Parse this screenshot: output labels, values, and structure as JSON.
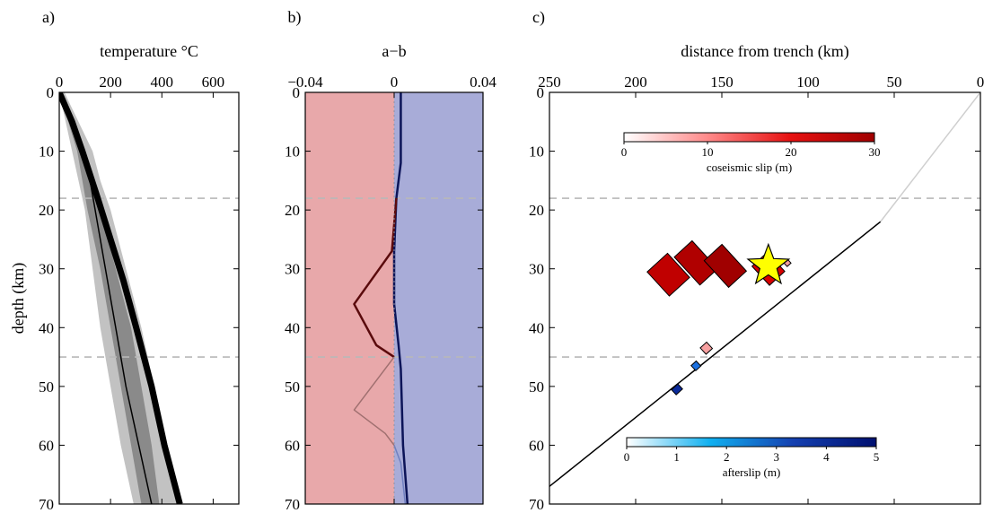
{
  "chart_data": [
    {
      "type": "line",
      "panel_label": "a)",
      "title": "temperature °C",
      "ylabel": "depth (km)",
      "xlim": [
        0,
        700
      ],
      "ylim": [
        0,
        70
      ],
      "xticks": [
        0,
        200,
        400,
        600
      ],
      "yticks": [
        0,
        10,
        20,
        30,
        40,
        50,
        60,
        70
      ],
      "reference_depths": [
        18,
        45
      ],
      "bands": [
        {
          "name": "outer",
          "color": "#c2c2c2",
          "left": [
            [
              0,
              0
            ],
            [
              50,
              10
            ],
            [
              100,
              20
            ],
            [
              130,
              30
            ],
            [
              160,
              40
            ],
            [
              200,
              50
            ],
            [
              240,
              60
            ],
            [
              290,
              70
            ]
          ],
          "right": [
            [
              20,
              0
            ],
            [
              130,
              10
            ],
            [
              160,
              15
            ],
            [
              200,
              20
            ],
            [
              260,
              30
            ],
            [
              320,
              40
            ],
            [
              370,
              50
            ],
            [
              410,
              60
            ],
            [
              460,
              70
            ]
          ]
        },
        {
          "name": "inner",
          "color": "#8a8a8a",
          "left": [
            [
              0,
              0
            ],
            [
              70,
              10
            ],
            [
              110,
              20
            ],
            [
              160,
              30
            ],
            [
              200,
              40
            ],
            [
              240,
              50
            ],
            [
              280,
              60
            ],
            [
              320,
              70
            ]
          ],
          "right": [
            [
              10,
              0
            ],
            [
              90,
              10
            ],
            [
              120,
              15
            ],
            [
              160,
              20
            ],
            [
              220,
              30
            ],
            [
              280,
              40
            ],
            [
              320,
              50
            ],
            [
              360,
              60
            ],
            [
              390,
              70
            ]
          ]
        }
      ],
      "series": [
        {
          "color": "#000000",
          "width": 1.5,
          "points": [
            [
              0,
              0
            ],
            [
              80,
              10
            ],
            [
              120,
              15
            ],
            [
              140,
              20
            ],
            [
              180,
              30
            ],
            [
              220,
              40
            ],
            [
              260,
              50
            ],
            [
              310,
              60
            ],
            [
              360,
              70
            ]
          ]
        },
        {
          "color": "#000000",
          "width": 7,
          "points": [
            [
              0,
              0
            ],
            [
              50,
              5
            ],
            [
              90,
              10
            ],
            [
              150,
              18
            ],
            [
              200,
              25
            ],
            [
              250,
              32
            ],
            [
              300,
              40
            ],
            [
              360,
              50
            ],
            [
              410,
              60
            ],
            [
              470,
              70
            ]
          ]
        }
      ]
    },
    {
      "type": "line",
      "panel_label": "b)",
      "title": "a−b",
      "xlim": [
        -0.04,
        0.04
      ],
      "ylim": [
        0,
        70
      ],
      "xticks": [
        -0.04,
        0,
        0.04
      ],
      "xticklabels": [
        "−0.04",
        "0",
        "0.04"
      ],
      "yticks": [
        0,
        10,
        20,
        30,
        40,
        50,
        60,
        70
      ],
      "reference_depths": [
        18,
        45
      ],
      "negative_fill": "#e8a8aa",
      "positive_fill": "#a8acd8",
      "series": [
        {
          "color": "#0c1458",
          "width": 2.5,
          "points": [
            [
              0.003,
              0
            ],
            [
              0.003,
              12
            ],
            [
              0.001,
              18
            ],
            [
              0,
              27
            ],
            [
              0,
              36
            ],
            [
              0.002,
              43
            ],
            [
              0.003,
              47
            ],
            [
              0.004,
              60
            ],
            [
              0.006,
              70
            ]
          ]
        },
        {
          "color": "#5a0a0c",
          "width": 2.5,
          "points": [
            [
              0.001,
              18
            ],
            [
              -0.001,
              27
            ],
            [
              -0.018,
              36
            ],
            [
              -0.008,
              43
            ],
            [
              0,
              45
            ]
          ]
        },
        {
          "color": "#a07070",
          "width": 1.5,
          "points": [
            [
              0,
              45
            ],
            [
              -0.018,
              54
            ],
            [
              -0.004,
              58
            ],
            [
              0,
              60
            ]
          ]
        },
        {
          "color": "#7080c0",
          "width": 1.5,
          "points": [
            [
              0,
              60
            ],
            [
              0.003,
              63
            ],
            [
              0.005,
              70
            ]
          ]
        },
        {
          "color": "#9090a0",
          "width": 1,
          "dashed": true,
          "points": [
            [
              0,
              0
            ],
            [
              0,
              70
            ]
          ]
        }
      ]
    },
    {
      "type": "map",
      "panel_label": "c)",
      "title": "distance from trench (km)",
      "xlim": [
        250,
        0
      ],
      "ylim": [
        0,
        70
      ],
      "xticks": [
        250,
        200,
        150,
        100,
        50,
        0
      ],
      "yticks": [
        0,
        10,
        20,
        30,
        40,
        50,
        60,
        70
      ],
      "reference_depths": [
        18,
        45
      ],
      "fault_line": {
        "from": [
          250,
          67
        ],
        "to": [
          0,
          0
        ]
      },
      "fault_line_light": {
        "from": [
          0,
          0
        ],
        "to": [
          58,
          22
        ]
      },
      "coseismic_colorbar": {
        "label": "coseismic slip (m)",
        "min": 0,
        "max": 30,
        "ticks": [
          0,
          10,
          20,
          30
        ],
        "colors": [
          "#ffffff",
          "#ff8a8a",
          "#e61010",
          "#a00000"
        ]
      },
      "afterslip_colorbar": {
        "label": "afterslip (m)",
        "min": 0,
        "max": 5,
        "ticks": [
          0,
          1,
          2,
          3,
          4,
          5
        ],
        "colors": [
          "#ffffff",
          "#10b0f0",
          "#1440b0",
          "#001070"
        ]
      },
      "patches": [
        {
          "kind": "coseismic",
          "color": "#c00000",
          "center": [
            181,
            31
          ],
          "along": 16,
          "down": 19
        },
        {
          "kind": "coseismic",
          "color": "#b00000",
          "center": [
            165,
            29
          ],
          "along": 14,
          "down": 22
        },
        {
          "kind": "coseismic",
          "color": "#a00000",
          "center": [
            148,
            29.5
          ],
          "along": 14,
          "down": 21
        },
        {
          "kind": "coseismic",
          "color": "#d80000",
          "center": [
            123,
            30
          ],
          "along": 12,
          "down": 15
        },
        {
          "kind": "coseismic",
          "color": "#f2a0a0",
          "center": [
            112,
            29
          ],
          "along": 3,
          "down": 3
        },
        {
          "kind": "coseismic",
          "color": "#f7a0a0",
          "center": [
            159,
            43.5
          ],
          "along": 5,
          "down": 5
        },
        {
          "kind": "afterslip",
          "color": "#1a70e0",
          "center": [
            165,
            46.5
          ],
          "along": 4,
          "down": 4
        },
        {
          "kind": "afterslip",
          "color": "#0a2a9a",
          "center": [
            176,
            50.5
          ],
          "along": 5,
          "down": 4
        }
      ],
      "hypocenter": {
        "x": 123,
        "y": 29.5,
        "color": "#ffff00"
      }
    }
  ]
}
